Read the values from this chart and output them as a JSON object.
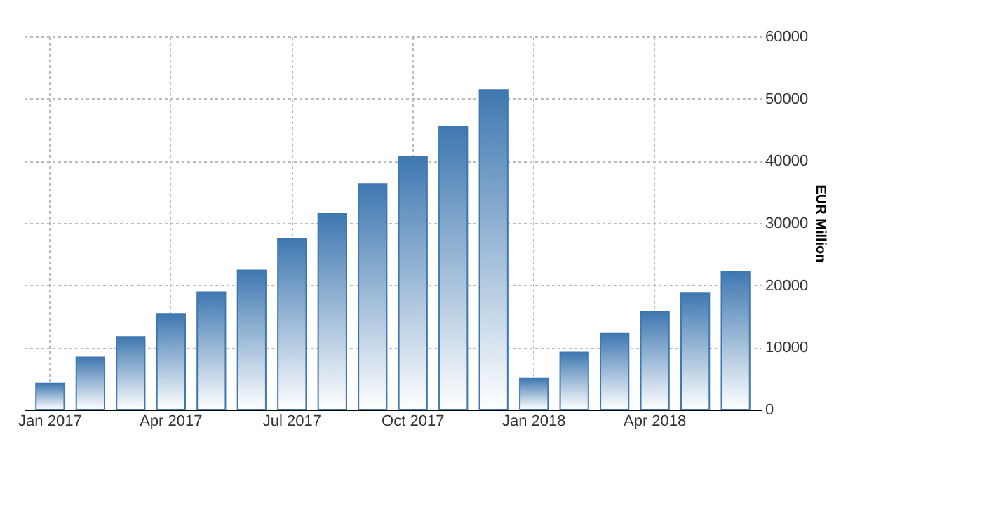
{
  "chart_data": {
    "type": "bar",
    "ylabel": "EUR Million",
    "categories": [
      "Jan 2017",
      null,
      null,
      "Apr 2017",
      null,
      null,
      "Jul 2017",
      null,
      null,
      "Oct 2017",
      null,
      null,
      "Jan 2018",
      null,
      null,
      "Apr 2018",
      null,
      null
    ],
    "values": [
      4200,
      8400,
      11700,
      15300,
      18900,
      22400,
      27500,
      31500,
      36300,
      40700,
      45500,
      51400,
      5000,
      9200,
      12200,
      15700,
      18700,
      22200
    ],
    "color": "#3f78b1",
    "ylim": [
      0,
      60000
    ],
    "yticks": [
      0,
      10000,
      20000,
      30000,
      40000,
      50000,
      60000
    ],
    "grid": true
  }
}
